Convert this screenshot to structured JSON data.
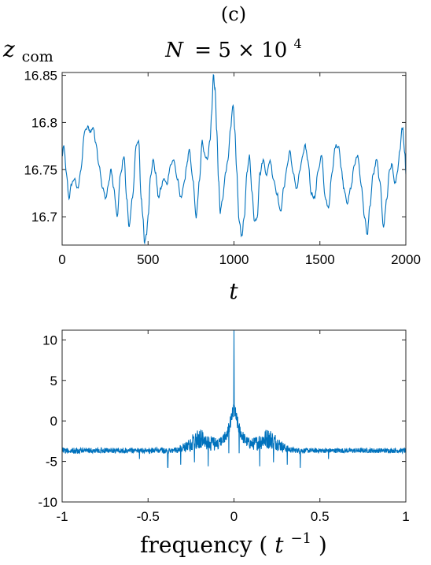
{
  "panel_label": "(c)",
  "colors": {
    "line": "#0072BD",
    "axes": "#262626"
  },
  "chart_data": [
    {
      "type": "line",
      "title": "N = 5 × 10^4",
      "title_parts": {
        "lhs": "N",
        "eq": "= 5 × 10",
        "exp": "4"
      },
      "ylabel": "z_com",
      "ylabel_parts": {
        "base": "z",
        "sub": "com"
      },
      "xlabel": "t",
      "xlim": [
        0,
        2000
      ],
      "ylim": [
        16.67,
        16.853
      ],
      "xticks": [
        0,
        500,
        1000,
        1500,
        2000
      ],
      "xtick_labels": [
        "0",
        "500",
        "1000",
        "1500",
        "2000"
      ],
      "yticks": [
        16.7,
        16.75,
        16.8,
        16.85
      ],
      "ytick_labels": [
        "16.7",
        "16.75",
        "16.8",
        "16.85"
      ],
      "grid": false,
      "series": [
        {
          "x": [
            0,
            10,
            25,
            40,
            55,
            70,
            90,
            110,
            130,
            150,
            165,
            180,
            195,
            215,
            235,
            255,
            270,
            285,
            300,
            320,
            340,
            360,
            375,
            390,
            410,
            430,
            445,
            460,
            470,
            480,
            490,
            500,
            515,
            530,
            545,
            560,
            575,
            590,
            610,
            630,
            650,
            670,
            690,
            710,
            725,
            740,
            760,
            780,
            800,
            815,
            830,
            845,
            860,
            870,
            880,
            890,
            900,
            910,
            920,
            935,
            950,
            965,
            980,
            995,
            1005,
            1015,
            1030,
            1045,
            1060,
            1075,
            1090,
            1105,
            1120,
            1135,
            1150,
            1170,
            1190,
            1210,
            1230,
            1250,
            1270,
            1290,
            1310,
            1325,
            1345,
            1365,
            1385,
            1400,
            1415,
            1430,
            1450,
            1470,
            1490,
            1510,
            1530,
            1550,
            1570,
            1590,
            1610,
            1625,
            1640,
            1660,
            1680,
            1700,
            1720,
            1740,
            1760,
            1775,
            1790,
            1810,
            1830,
            1850,
            1870,
            1890,
            1905,
            1920,
            1935,
            1950,
            1965,
            1980,
            1995,
            2000
          ],
          "y": [
            16.765,
            16.775,
            16.745,
            16.72,
            16.735,
            16.74,
            16.73,
            16.75,
            16.79,
            16.795,
            16.79,
            16.795,
            16.78,
            16.755,
            16.73,
            16.72,
            16.735,
            16.75,
            16.73,
            16.7,
            16.745,
            16.765,
            16.72,
            16.69,
            16.72,
            16.775,
            16.78,
            16.72,
            16.7,
            16.672,
            16.68,
            16.7,
            16.745,
            16.76,
            16.745,
            16.72,
            16.73,
            16.74,
            16.735,
            16.755,
            16.76,
            16.74,
            16.72,
            16.735,
            16.755,
            16.77,
            16.74,
            16.7,
            16.74,
            16.78,
            16.765,
            16.76,
            16.78,
            16.81,
            16.85,
            16.835,
            16.79,
            16.74,
            16.705,
            16.72,
            16.745,
            16.76,
            16.795,
            16.82,
            16.79,
            16.75,
            16.695,
            16.68,
            16.7,
            16.745,
            16.765,
            16.725,
            16.695,
            16.7,
            16.745,
            16.76,
            16.745,
            16.76,
            16.74,
            16.725,
            16.705,
            16.73,
            16.755,
            16.77,
            16.745,
            16.73,
            16.75,
            16.765,
            16.775,
            16.76,
            16.725,
            16.72,
            16.75,
            16.765,
            16.72,
            16.71,
            16.745,
            16.775,
            16.775,
            16.75,
            16.73,
            16.715,
            16.73,
            16.755,
            16.765,
            16.735,
            16.7,
            16.68,
            16.71,
            16.745,
            16.76,
            16.735,
            16.69,
            16.72,
            16.75,
            16.755,
            16.735,
            16.745,
            16.77,
            16.795,
            16.765,
            16.745
          ]
        }
      ]
    },
    {
      "type": "line",
      "title": "",
      "xlabel": "frequency (t^-1)",
      "xlabel_parts": {
        "word": "frequency (",
        "base": "t",
        "exp": "−1",
        "close": ")"
      },
      "ylabel": "",
      "xlim": [
        -1,
        1
      ],
      "ylim": [
        -10,
        11.2
      ],
      "xticks": [
        -1,
        -0.5,
        0,
        0.5,
        1
      ],
      "xtick_labels": [
        "-1",
        "-0.5",
        "0",
        "0.5",
        "1"
      ],
      "yticks": [
        -10,
        -5,
        0,
        5,
        10
      ],
      "ytick_labels": [
        "-10",
        "-5",
        "0",
        "5",
        "10"
      ],
      "grid": false,
      "spectrum": {
        "symmetric": true,
        "floor_level": -3.6,
        "noise_amplitude": 0.3,
        "lobe": {
          "center": 0.2,
          "width": 0.08,
          "height": 1.6,
          "extra_noise": 0.9
        },
        "central_rise": {
          "height": 5.5,
          "width": 0.045
        },
        "central_peak": {
          "x": 0,
          "y": 11.2
        },
        "dips": [
          {
            "x": -0.385,
            "y": -5.8
          },
          {
            "x": -0.31,
            "y": -5.4
          },
          {
            "x": -0.23,
            "y": -5.1
          },
          {
            "x": -0.15,
            "y": -5.6
          },
          {
            "x": -0.55,
            "y": -4.7
          },
          {
            "x": -0.03,
            "y": -4.0
          },
          {
            "x": 0.03,
            "y": -4.0
          },
          {
            "x": 0.15,
            "y": -5.6
          },
          {
            "x": 0.23,
            "y": -5.1
          },
          {
            "x": 0.31,
            "y": -5.4
          },
          {
            "x": 0.385,
            "y": -5.8
          },
          {
            "x": 0.55,
            "y": -4.7
          }
        ]
      }
    }
  ]
}
